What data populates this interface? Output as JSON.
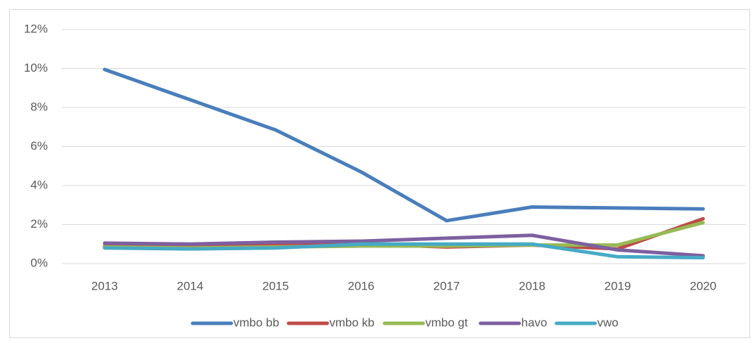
{
  "chart_data": {
    "type": "line",
    "categories": [
      "2013",
      "2014",
      "2015",
      "2016",
      "2017",
      "2018",
      "2019",
      "2020"
    ],
    "series": [
      {
        "name": "vmbo bb",
        "color": "#4a7ebb",
        "values": [
          9.95,
          8.4,
          6.85,
          4.7,
          2.2,
          2.9,
          2.85,
          2.8
        ]
      },
      {
        "name": "vmbo kb",
        "color": "#be4b48",
        "values": [
          0.9,
          0.85,
          0.95,
          1.0,
          0.85,
          0.95,
          0.75,
          2.3
        ]
      },
      {
        "name": "vmbo gt",
        "color": "#98b954",
        "values": [
          0.85,
          0.8,
          0.85,
          0.9,
          0.9,
          0.95,
          0.95,
          2.1
        ]
      },
      {
        "name": "havo",
        "color": "#7d60a0",
        "values": [
          1.05,
          1.0,
          1.1,
          1.15,
          1.3,
          1.45,
          0.7,
          0.4
        ]
      },
      {
        "name": "vwo",
        "color": "#46aac5",
        "values": [
          0.8,
          0.75,
          0.8,
          1.0,
          1.0,
          1.0,
          0.35,
          0.3
        ]
      }
    ],
    "ylim": [
      0,
      12
    ],
    "yticks": [
      {
        "value": 0,
        "label": "0%"
      },
      {
        "value": 2,
        "label": "2%"
      },
      {
        "value": 4,
        "label": "4%"
      },
      {
        "value": 6,
        "label": "6%"
      },
      {
        "value": 8,
        "label": "8%"
      },
      {
        "value": 10,
        "label": "10%"
      },
      {
        "value": 12,
        "label": "12%"
      }
    ],
    "grid": true,
    "legend": "bottom"
  }
}
